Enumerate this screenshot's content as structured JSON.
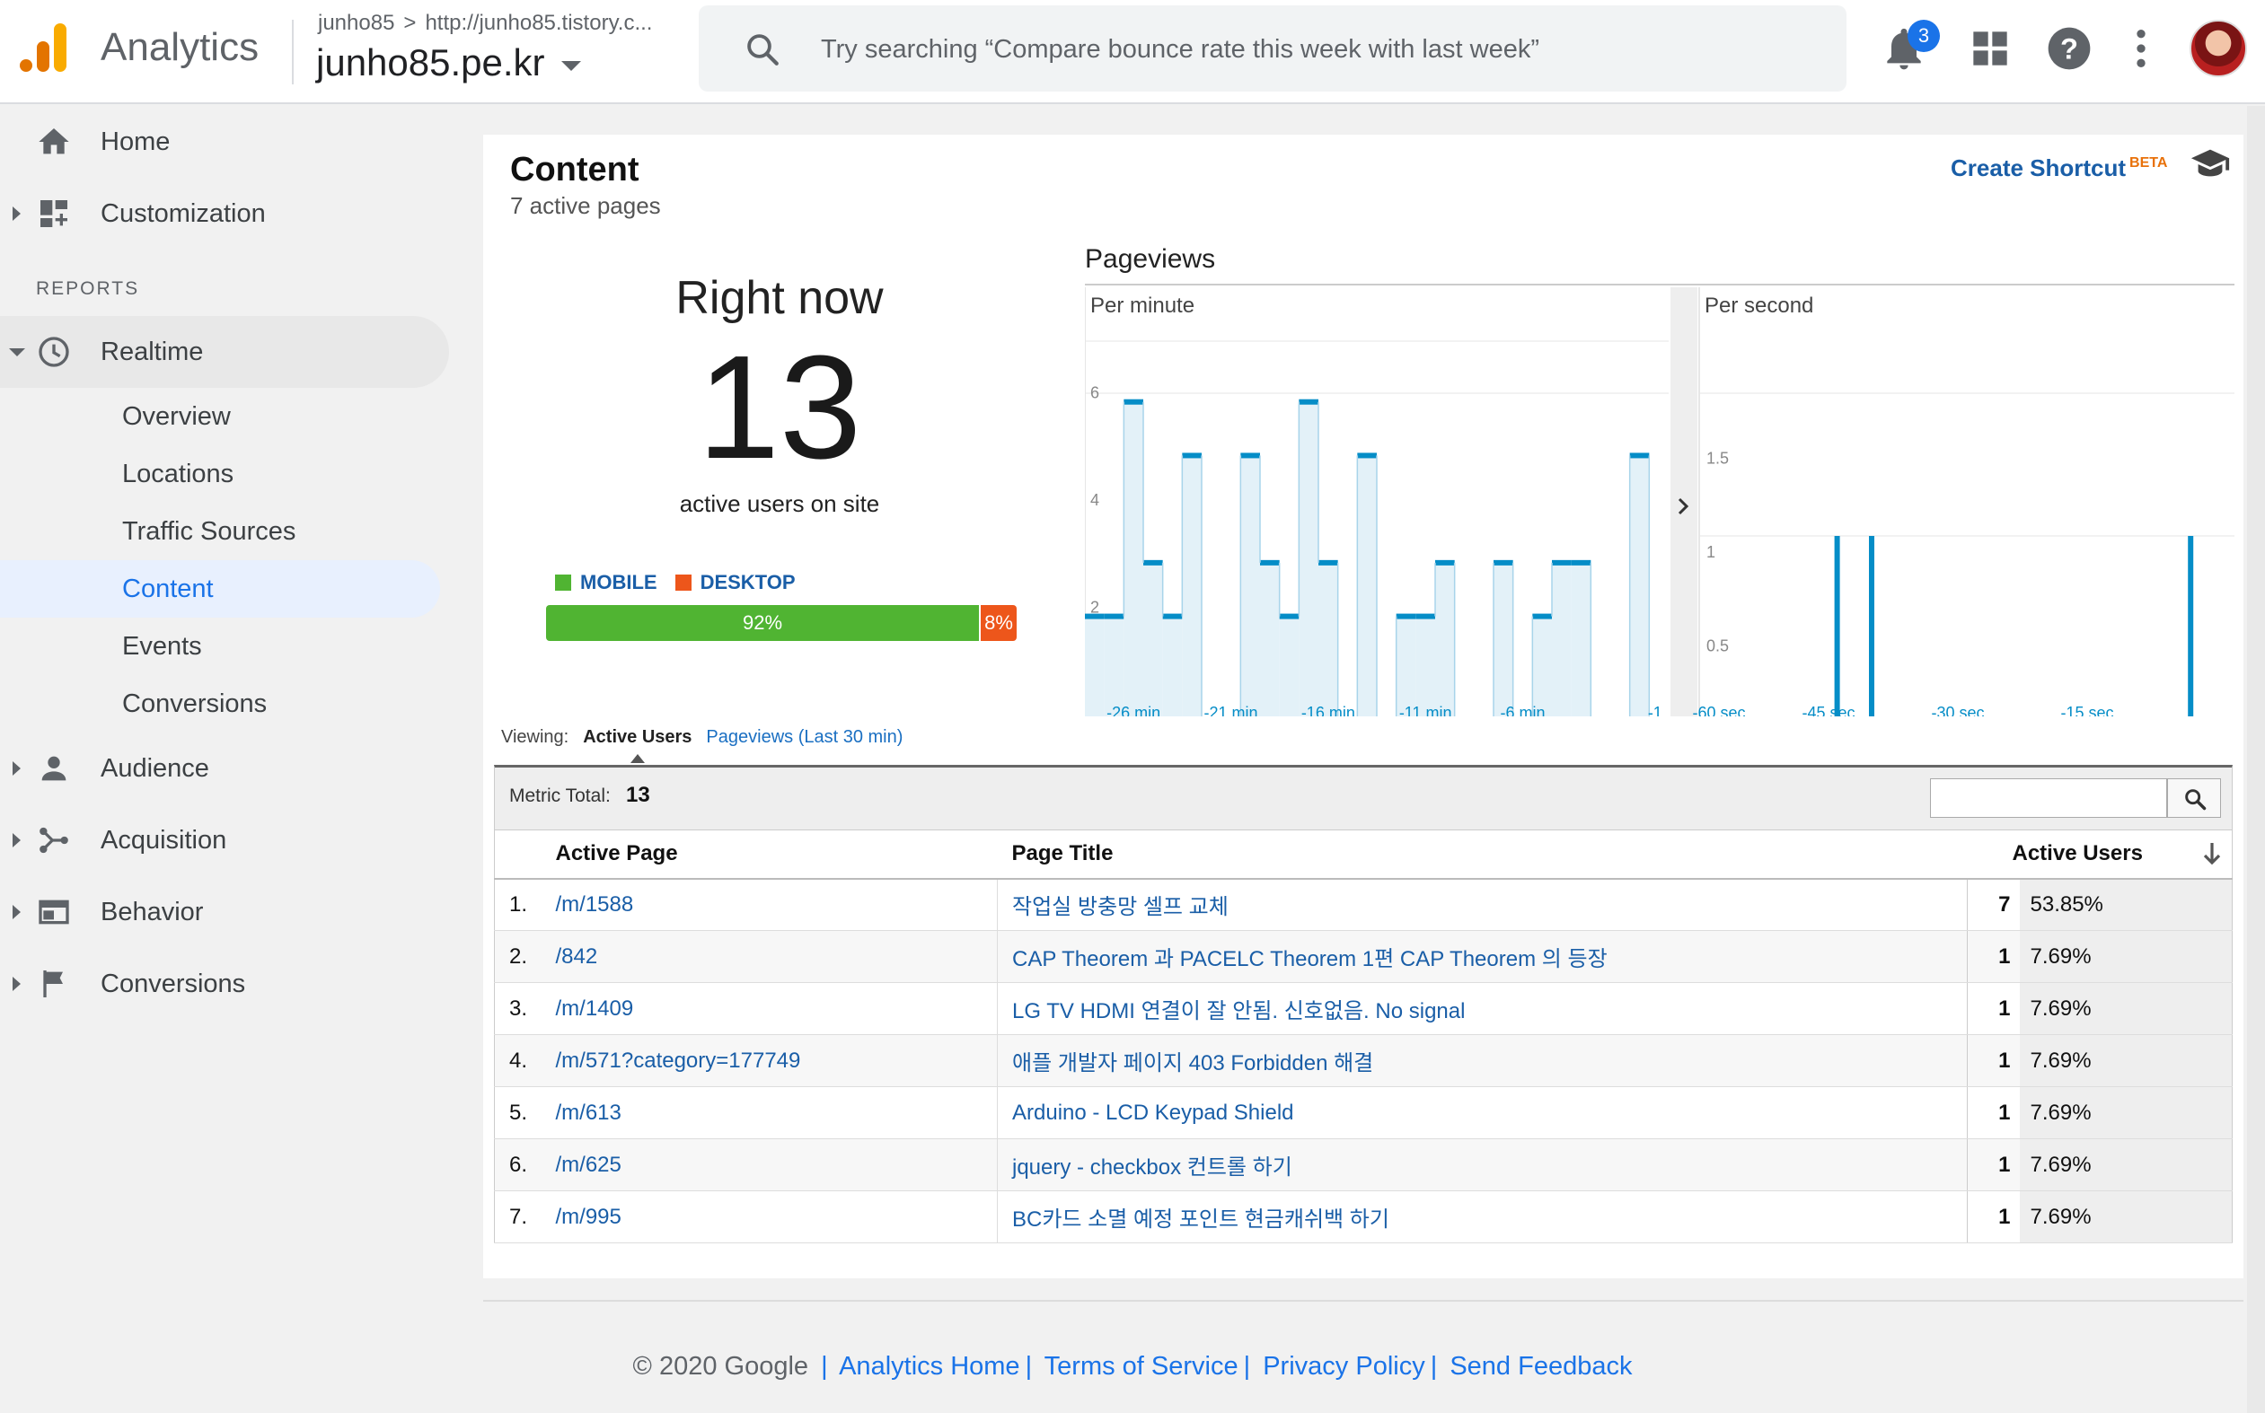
{
  "header": {
    "app_name": "Analytics",
    "account": "junho85",
    "property_url": "http://junho85.tistory.c...",
    "property_name": "junho85.pe.kr",
    "search_placeholder": "Try searching “Compare bounce rate this week with last week”",
    "notification_count": "3"
  },
  "sidebar": {
    "top_items": [
      {
        "label": "Home",
        "icon": "home-icon"
      },
      {
        "label": "Customization",
        "icon": "dashboard-icon"
      }
    ],
    "reports_label": "REPORTS",
    "realtime": {
      "label": "Realtime",
      "icon": "clock-icon"
    },
    "realtime_sub": [
      "Overview",
      "Locations",
      "Traffic Sources",
      "Content",
      "Events",
      "Conversions"
    ],
    "active_sub": "Content",
    "bottom_items": [
      {
        "label": "Audience",
        "icon": "person-icon"
      },
      {
        "label": "Acquisition",
        "icon": "acquisition-icon"
      },
      {
        "label": "Behavior",
        "icon": "behavior-icon"
      },
      {
        "label": "Conversions",
        "icon": "flag-icon"
      }
    ]
  },
  "content": {
    "title": "Content",
    "subtitle": "7 active pages",
    "create_shortcut": "Create Shortcut",
    "beta": "BETA"
  },
  "right_now": {
    "label": "Right now",
    "count": "13",
    "caption": "active users on site",
    "legend_mobile": "MOBILE",
    "legend_desktop": "DESKTOP",
    "mobile_pct": "92%",
    "desktop_pct": "8%",
    "mobile_fraction": 0.92,
    "colors": {
      "mobile": "#50b432",
      "desktop": "#ed561b"
    }
  },
  "chart_data": [
    {
      "type": "bar",
      "title": "Pageviews",
      "subtitle": "Per minute",
      "y_ticks": [
        "2",
        "4",
        "6"
      ],
      "ylim": [
        0,
        7
      ],
      "x_tick_labels": [
        "-26 min",
        "-21 min",
        "-16 min",
        "-11 min",
        "-6 min",
        "-1"
      ],
      "values": [
        2,
        2,
        6,
        3,
        2,
        5,
        0,
        0,
        5,
        3,
        2,
        6,
        3,
        0,
        5,
        0,
        2,
        2,
        3,
        0,
        0,
        3,
        0,
        2,
        3,
        3,
        0,
        0,
        5,
        0
      ]
    },
    {
      "type": "bar",
      "subtitle": "Per second",
      "y_ticks": [
        "0.5",
        "1",
        "1.5"
      ],
      "ylim": [
        0,
        2
      ],
      "x_tick_labels": [
        "-60 sec",
        "-45 sec",
        "-30 sec",
        "-15 sec"
      ],
      "spike_seconds": [
        -44,
        -40,
        -3
      ],
      "spike_value": 1
    }
  ],
  "viewing": {
    "label": "Viewing:",
    "active_users": "Active Users",
    "pageviews": "Pageviews (Last 30 min)"
  },
  "table": {
    "metric_label": "Metric Total:",
    "metric_total": "13",
    "headers": {
      "page": "Active Page",
      "title": "Page Title",
      "users": "Active Users"
    },
    "rows": [
      {
        "n": "1.",
        "page": "/m/1588",
        "title": "작업실 방충망 셀프 교체",
        "users": "7",
        "pct": "53.85%"
      },
      {
        "n": "2.",
        "page": "/842",
        "title": "CAP Theorem 과 PACELC Theorem 1편 CAP Theorem 의 등장",
        "users": "1",
        "pct": "7.69%"
      },
      {
        "n": "3.",
        "page": "/m/1409",
        "title": "LG TV HDMI 연결이 잘 안됨. 신호없음. No signal",
        "users": "1",
        "pct": "7.69%"
      },
      {
        "n": "4.",
        "page": "/m/571?category=177749",
        "title": "애플 개발자 페이지 403 Forbidden 해결",
        "users": "1",
        "pct": "7.69%"
      },
      {
        "n": "5.",
        "page": "/m/613",
        "title": "Arduino - LCD Keypad Shield",
        "users": "1",
        "pct": "7.69%"
      },
      {
        "n": "6.",
        "page": "/m/625",
        "title": "jquery - checkbox 컨트롤 하기",
        "users": "1",
        "pct": "7.69%"
      },
      {
        "n": "7.",
        "page": "/m/995",
        "title": "BC카드 소멸 예정 포인트 현금캐쉬백 하기",
        "users": "1",
        "pct": "7.69%"
      }
    ]
  },
  "footer": {
    "copyright": "© 2020 Google",
    "links": [
      "Analytics Home",
      "Terms of Service",
      "Privacy Policy",
      "Send Feedback"
    ]
  }
}
